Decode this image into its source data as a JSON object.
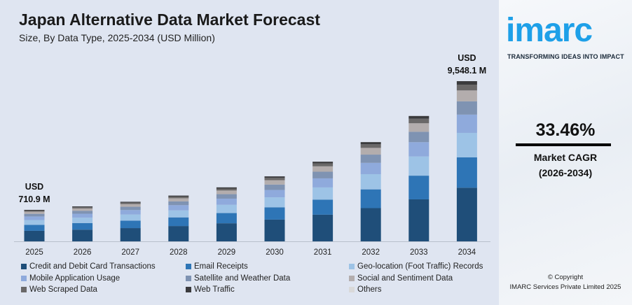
{
  "chart_data": {
    "type": "bar",
    "stacked": true,
    "title": "Japan Alternative Data Market Forecast",
    "subtitle": "Size, By Data Type, 2025-2034 (USD Million)",
    "categories": [
      "2025",
      "2026",
      "2027",
      "2028",
      "2029",
      "2030",
      "2031",
      "2032",
      "2033",
      "2034"
    ],
    "totals": [
      710.9,
      948.8,
      1266.3,
      1690.0,
      2255.5,
      3010.2,
      4017.4,
      5361.7,
      7155.8,
      9548.1
    ],
    "annotations": [
      {
        "year": "2025",
        "line1": "USD",
        "line2": "710.9 M"
      },
      {
        "year": "2034",
        "line1": "USD",
        "line2": "9,548.1 M"
      }
    ],
    "series": [
      {
        "name": "Credit and Debit Card Transactions",
        "share_pct": 33.5,
        "color": "#1f4e79"
      },
      {
        "name": "Email Receipts",
        "share_pct": 18.9,
        "color": "#2e75b6"
      },
      {
        "name": "Geo-location (Foot Traffic) Records",
        "share_pct": 15.3,
        "color": "#9dc3e6"
      },
      {
        "name": "Mobile Application Usage",
        "share_pct": 11.4,
        "color": "#8faadc"
      },
      {
        "name": "Satellite and Weather Data",
        "share_pct": 8.3,
        "color": "#7f93b2"
      },
      {
        "name": "Social and Sentiment Data",
        "share_pct": 6.8,
        "color": "#b3adad"
      },
      {
        "name": "Web Scraped Data",
        "share_pct": 3.6,
        "color": "#6a6868"
      },
      {
        "name": "Web Traffic",
        "share_pct": 2.2,
        "color": "#3b3b3d"
      },
      {
        "name": "Others",
        "share_pct": 0.0,
        "color": "#d9d9d9"
      }
    ],
    "grid": false,
    "legend_placement": "bottom"
  },
  "brand": {
    "logo": "imarc",
    "tagline": "TRANSFORMING IDEAS INTO IMPACT",
    "color": "#1ea0e8"
  },
  "cagr": {
    "value": "33.46%",
    "label": "Market CAGR",
    "period": "(2026-2034)"
  },
  "copyright": {
    "line1": "© Copyright",
    "line2": "IMARC Services Private Limited 2025"
  }
}
